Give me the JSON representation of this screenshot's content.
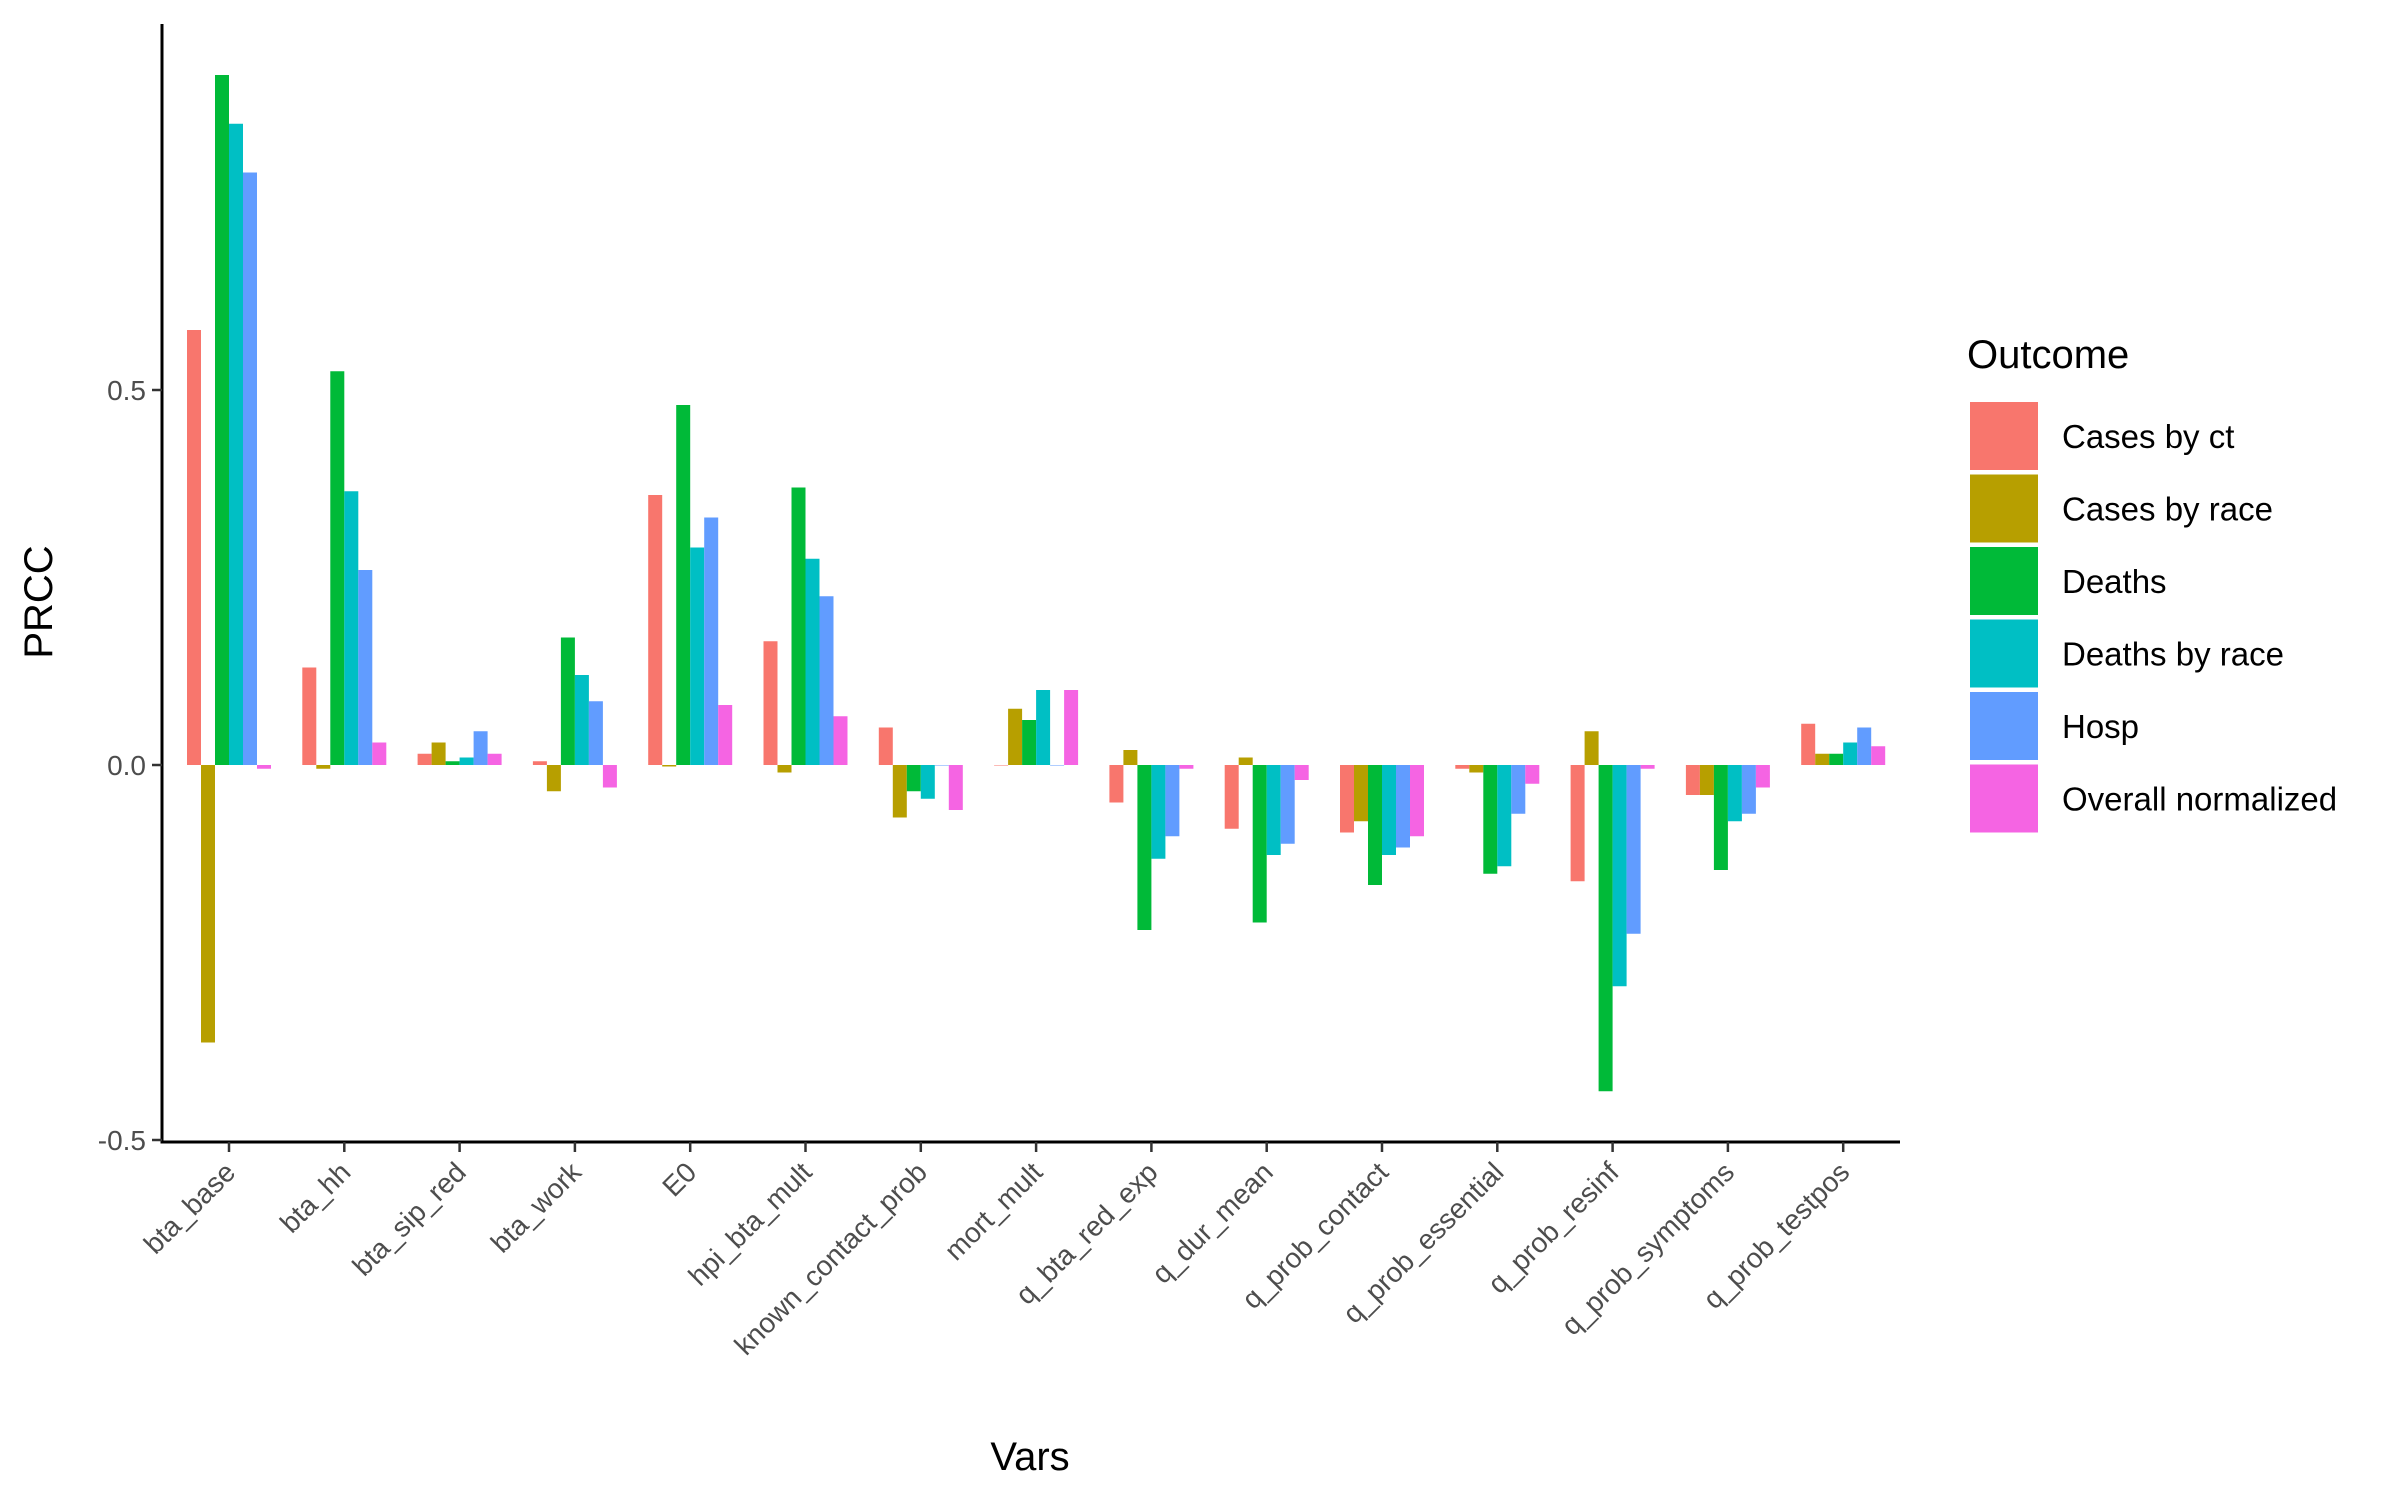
{
  "chart_data": {
    "type": "bar",
    "xlabel": "Vars",
    "ylabel": "PRCC",
    "ylim": [
      -0.5,
      0.95
    ],
    "yticks": [
      -0.5,
      0.0,
      0.5
    ],
    "ytick_labels": [
      "-0.5",
      "0.0",
      "0.5"
    ],
    "grid": false,
    "legend": {
      "title": "Outcome",
      "placement": "right"
    },
    "categories": [
      "bta_base",
      "bta_hh",
      "bta_sip_red",
      "bta_work",
      "E0",
      "hpi_bta_mult",
      "known_contact_prob",
      "mort_mult",
      "q_bta_red_exp",
      "q_dur_mean",
      "q_prob_contact",
      "q_prob_essential",
      "q_prob_resinf",
      "q_prob_symptoms",
      "q_prob_testpos"
    ],
    "series": [
      {
        "name": "Cases by ct",
        "color": "#F8766D",
        "values": [
          0.58,
          0.13,
          0.015,
          0.005,
          0.36,
          0.165,
          0.05,
          0.0,
          -0.05,
          -0.085,
          -0.09,
          -0.005,
          -0.155,
          -0.04,
          0.055
        ]
      },
      {
        "name": "Cases by race",
        "color": "#B79F00",
        "values": [
          -0.37,
          -0.005,
          0.03,
          -0.035,
          -0.002,
          -0.01,
          -0.07,
          0.075,
          0.02,
          0.01,
          -0.075,
          -0.01,
          0.045,
          -0.04,
          0.015
        ]
      },
      {
        "name": "Deaths",
        "color": "#00BA38",
        "values": [
          0.92,
          0.525,
          0.005,
          0.17,
          0.48,
          0.37,
          -0.035,
          0.06,
          -0.22,
          -0.21,
          -0.16,
          -0.145,
          -0.435,
          -0.14,
          0.015
        ]
      },
      {
        "name": "Deaths by race",
        "color": "#00BFC4",
        "values": [
          0.855,
          0.365,
          0.01,
          0.12,
          0.29,
          0.275,
          -0.045,
          0.1,
          -0.125,
          -0.12,
          -0.12,
          -0.135,
          -0.295,
          -0.075,
          0.03
        ]
      },
      {
        "name": "Hosp",
        "color": "#619CFF",
        "values": [
          0.79,
          0.26,
          0.045,
          0.085,
          0.33,
          0.225,
          0.0,
          0.0,
          -0.095,
          -0.105,
          -0.11,
          -0.065,
          -0.225,
          -0.065,
          0.05
        ]
      },
      {
        "name": "Overall normalized",
        "color": "#F564E3",
        "values": [
          -0.005,
          0.03,
          0.015,
          -0.03,
          0.08,
          0.065,
          -0.06,
          0.1,
          -0.005,
          -0.02,
          -0.095,
          -0.025,
          -0.005,
          -0.03,
          0.025
        ]
      }
    ]
  }
}
